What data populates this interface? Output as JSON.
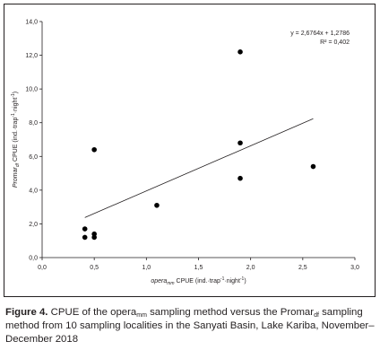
{
  "chart_data": {
    "type": "scatter",
    "xlabel": {
      "pre": "opera",
      "sub": "mm",
      "post": " CPUE (ind.·trap",
      "sup1": "-1",
      "mid": "·night",
      "sup2": "-1",
      "end": ")"
    },
    "ylabel": {
      "pre": "Promar",
      "sub": "df",
      "post": " CPUE (ind.·trap",
      "sup1": "-1",
      "mid": "·night",
      "sup2": "-1",
      "end": ")"
    },
    "xlim": [
      0,
      3
    ],
    "ylim": [
      0,
      14
    ],
    "xticks": [
      "0,0",
      "0,5",
      "1,0",
      "1,5",
      "2,0",
      "2,5",
      "3,0"
    ],
    "xtick_values": [
      0,
      0.5,
      1,
      1.5,
      2,
      2.5,
      3
    ],
    "yticks": [
      "0,0",
      "2,0",
      "4,0",
      "6,0",
      "8,0",
      "10,0",
      "12,0",
      "14,0"
    ],
    "ytick_values": [
      0,
      2,
      4,
      6,
      8,
      10,
      12,
      14
    ],
    "points": [
      {
        "x": 0.41,
        "y": 1.7
      },
      {
        "x": 0.41,
        "y": 1.2
      },
      {
        "x": 0.5,
        "y": 6.4
      },
      {
        "x": 0.5,
        "y": 1.4
      },
      {
        "x": 0.5,
        "y": 1.2
      },
      {
        "x": 1.1,
        "y": 3.1
      },
      {
        "x": 1.9,
        "y": 12.2
      },
      {
        "x": 1.9,
        "y": 6.8
      },
      {
        "x": 1.9,
        "y": 4.7
      },
      {
        "x": 2.6,
        "y": 5.4
      }
    ],
    "trendline": {
      "slope": 2.6764,
      "intercept": 1.2786,
      "x_range": [
        0.41,
        2.6
      ]
    },
    "equation": "y = 2,6764x + 1,2786",
    "r_squared": "R² = 0,402",
    "grid": false,
    "legend": "none"
  },
  "caption": {
    "label": "Figure 4.",
    "t1": " CPUE of the opera",
    "s1": "mm",
    "t2": " sampling method versus the Promar",
    "s2": "df",
    "t3": " sampling method from 10 sampling localities in the Sanyati Basin, Lake Kariba, November–December 2018"
  }
}
